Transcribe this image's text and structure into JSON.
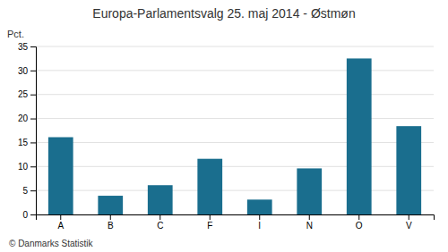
{
  "chart_data": {
    "type": "bar",
    "title": "Europa-Parlamentsvalg 25. maj 2014 - Østmøn",
    "ylabel": "Pct.",
    "annotations": [
      "© Danmarks Statistik"
    ],
    "categories": [
      "A",
      "B",
      "C",
      "F",
      "I",
      "N",
      "O",
      "V"
    ],
    "values": [
      16.1,
      3.9,
      6.1,
      11.6,
      3.1,
      9.6,
      32.5,
      18.4
    ],
    "color": "#1a6e8e",
    "ylim": [
      0,
      35
    ],
    "yticks": [
      0,
      5,
      10,
      15,
      20,
      25,
      30,
      35
    ],
    "grid": true
  }
}
